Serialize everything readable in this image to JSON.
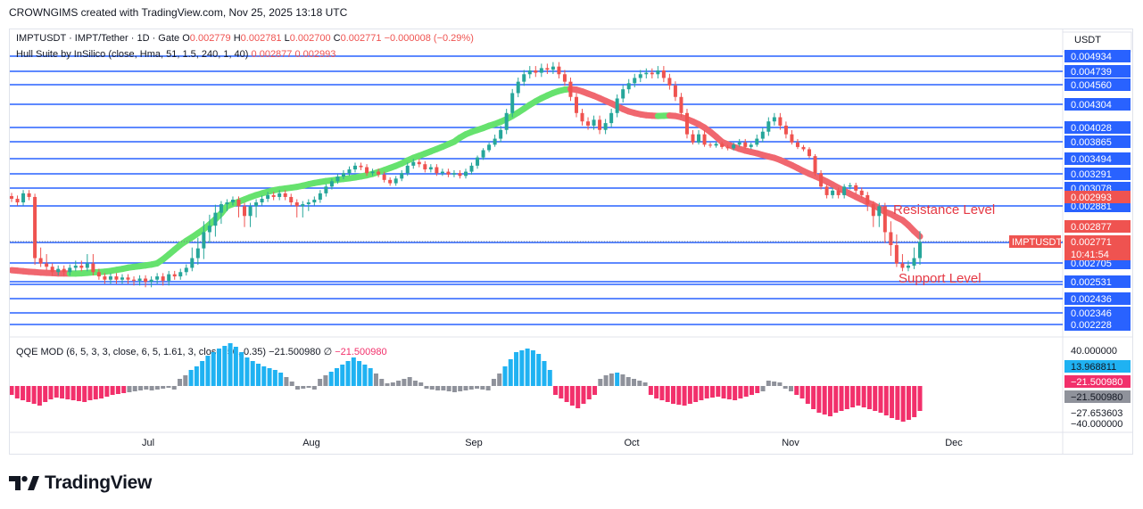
{
  "header": {
    "text": "CROWNGIMS created with TradingView.com, Nov 25, 2025 13:18 UTC"
  },
  "footer": {
    "brand": "TradingView"
  },
  "colors": {
    "up": "#26a69a",
    "down": "#ef5350",
    "level": "#2962ff",
    "hull_up": "#66e26e",
    "hull_down": "#f0676f",
    "qqe_up": "#1fb2f2",
    "qqe_down": "#f2306b",
    "qqe_neutral": "#8f929b",
    "annotation": "#e53945"
  },
  "legend": {
    "symbol_line_parts": [
      {
        "text": "IMPTUSDT · IMPT/Tether · 1D · Gate  ",
        "color": "#131722"
      },
      {
        "text": "O",
        "color": "#131722"
      },
      {
        "text": "0.002779  ",
        "color": "#ef5350"
      },
      {
        "text": "H",
        "color": "#131722"
      },
      {
        "text": "0.002781  ",
        "color": "#ef5350"
      },
      {
        "text": "L",
        "color": "#131722"
      },
      {
        "text": "0.002700  ",
        "color": "#ef5350"
      },
      {
        "text": "C",
        "color": "#131722"
      },
      {
        "text": "0.002771  ",
        "color": "#ef5350"
      },
      {
        "text": "−0.000008 (−0.29%)",
        "color": "#ef5350"
      }
    ],
    "hull_line_parts": [
      {
        "text": "Hull Suite by InSilico (close, Hma, 51, 1.5, 240, 1, 40)  ",
        "color": "#131722"
      },
      {
        "text": "0.002877  ",
        "color": "#ef5350"
      },
      {
        "text": "0.002993",
        "color": "#ef5350"
      }
    ],
    "qqe_line_parts": [
      {
        "text": "QQE MOD (6, 5, 3, 3, close, 6, 5, 1.61, 3, close, 50, 0.35)  ",
        "color": "#131722"
      },
      {
        "text": "−21.500980  ",
        "color": "#131722"
      },
      {
        "text": "∅  ",
        "color": "#131722"
      },
      {
        "text": "−21.500980",
        "color": "#f2306b"
      }
    ]
  },
  "annotations": {
    "resistance": "Resistance Level",
    "support": "Support Level"
  },
  "chart_data": {
    "type": "candlestick",
    "symbol": "IMPTUSDT",
    "quote_currency": "USDT",
    "timeframe": "1D",
    "x_labels": [
      "Jul",
      "Aug",
      "Sep",
      "Oct",
      "Nov",
      "Dec"
    ],
    "price_axis_labels": [
      "0.004934",
      "0.004739",
      "0.004560",
      "0.004304",
      "0.004028",
      "0.003865",
      "0.003494",
      "0.003291",
      "0.003078",
      "0.002881",
      "0.002705",
      "0.002531",
      "0.002436",
      "0.002346",
      "0.002228"
    ],
    "horizontal_levels": [
      0.004934,
      0.004739,
      0.00456,
      0.004304,
      0.004028,
      0.003865,
      0.003494,
      0.003291,
      0.003078,
      0.002881,
      0.002705,
      0.002531,
      0.002436,
      0.002346,
      0.002228
    ],
    "ohlc_close_series": [
      0.00296,
      0.00292,
      0.00302,
      0.00298,
      0.00272,
      0.0027,
      0.00267,
      0.00262,
      0.00265,
      0.00262,
      0.00266,
      0.00268,
      0.00266,
      0.0027,
      0.00262,
      0.00258,
      0.00255,
      0.00258,
      0.00255,
      0.00257,
      0.00255,
      0.00254,
      0.00256,
      0.00253,
      0.00255,
      0.00258,
      0.00254,
      0.0026,
      0.00258,
      0.00262,
      0.00266,
      0.00272,
      0.00275,
      0.0028,
      0.00282,
      0.00286,
      0.0029,
      0.00292,
      0.00295,
      0.00288,
      0.00285,
      0.00288,
      0.00292,
      0.00296,
      0.003,
      0.00298,
      0.00302,
      0.00298,
      0.00292,
      0.00288,
      0.0029,
      0.00292,
      0.00295,
      0.00302,
      0.0031,
      0.00318,
      0.00325,
      0.0033,
      0.00335,
      0.0034,
      0.00338,
      0.0033,
      0.00332,
      0.00328,
      0.0032,
      0.00315,
      0.00322,
      0.0033,
      0.0034,
      0.00345,
      0.00342,
      0.00335,
      0.00338,
      0.0033,
      0.00332,
      0.00328,
      0.0033,
      0.00326,
      0.00332,
      0.0034,
      0.00352,
      0.00368,
      0.0038,
      0.0039,
      0.004,
      0.0042,
      0.00445,
      0.0046,
      0.0047,
      0.00475,
      0.00472,
      0.00478,
      0.00476,
      0.0048,
      0.0047,
      0.0046,
      0.0044,
      0.0042,
      0.0041,
      0.00405,
      0.00412,
      0.004,
      0.00408,
      0.0042,
      0.00438,
      0.0045,
      0.00458,
      0.00465,
      0.0047,
      0.00472,
      0.0047,
      0.00475,
      0.00465,
      0.00455,
      0.0044,
      0.0042,
      0.00395,
      0.00385,
      0.00395,
      0.0038,
      0.00378,
      0.00382,
      0.00375,
      0.00372,
      0.0038,
      0.00385,
      0.00375,
      0.0038,
      0.0039,
      0.00398,
      0.0041,
      0.00415,
      0.00405,
      0.00395,
      0.00385,
      0.00375,
      0.0037,
      0.00355,
      0.0033,
      0.0031,
      0.003,
      0.00305,
      0.003,
      0.0031,
      0.00312,
      0.00305,
      0.003,
      0.0029,
      0.00285,
      0.00288,
      0.0028,
      0.00276,
      0.0027,
      0.00266,
      0.00268,
      0.00272,
      0.00277
    ],
    "current_price": 0.002771,
    "countdown": "10:41:54",
    "hull_values": [
      0.002877,
      0.002993
    ],
    "qqe": {
      "y_axis_labels": [
        "40.000000",
        "−27.653603",
        "−40.000000"
      ],
      "current_values": [
        "13.968811",
        "−21.500980",
        "−21.500980"
      ],
      "histogram": [
        -10,
        -14,
        -16,
        -18,
        -20,
        -22,
        -18,
        -15,
        -13,
        -14,
        -15,
        -16,
        -17,
        -18,
        -16,
        -15,
        -14,
        -12,
        -10,
        -9,
        -8,
        -7,
        -6,
        -5,
        -4,
        -5,
        -4,
        -3,
        -2,
        -4,
        8,
        12,
        18,
        22,
        28,
        34,
        38,
        42,
        45,
        48,
        44,
        38,
        32,
        28,
        25,
        22,
        20,
        18,
        15,
        10,
        5,
        -4,
        -3,
        -2,
        -4,
        8,
        12,
        16,
        20,
        24,
        28,
        32,
        28,
        24,
        20,
        14,
        8,
        3,
        4,
        6,
        8,
        10,
        6,
        4,
        -3,
        -4,
        -5,
        -5,
        -6,
        -7,
        -6,
        -5,
        -4,
        -3,
        -4,
        -5,
        8,
        14,
        22,
        30,
        38,
        40,
        42,
        40,
        36,
        28,
        18,
        -10,
        -14,
        -18,
        -22,
        -25,
        -20,
        -15,
        -10,
        8,
        12,
        14,
        15,
        13,
        10,
        8,
        6,
        4,
        -10,
        -14,
        -16,
        -18,
        -20,
        -21,
        -22,
        -20,
        -18,
        -16,
        -14,
        -13,
        -12,
        -14,
        -15,
        -16,
        -14,
        -12,
        -10,
        -8,
        -6,
        6,
        5,
        4,
        -3,
        -6,
        -10,
        -14,
        -20,
        -26,
        -30,
        -32,
        -34,
        -30,
        -28,
        -26,
        -24,
        -22,
        -24,
        -26,
        -28,
        -30,
        -33,
        -36,
        -38,
        -40,
        -38,
        -35,
        -28
      ]
    }
  }
}
